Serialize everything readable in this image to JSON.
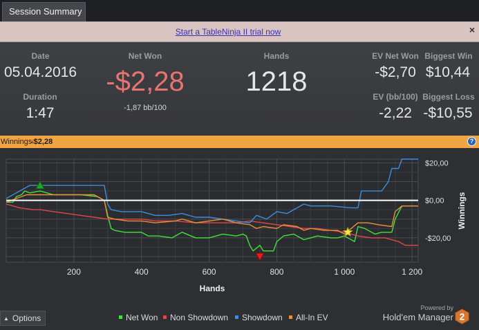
{
  "tab": {
    "label": "Session Summary"
  },
  "banner": {
    "link": "Start a TableNinja II trial now",
    "close": "×"
  },
  "stats": {
    "date_label": "Date",
    "date": "05.04.2016",
    "duration_label": "Duration",
    "duration": "1:47",
    "net_won_label": "Net Won",
    "net_won": "-$2,28",
    "bb100": "-1,87 bb/100",
    "hands_label": "Hands",
    "hands": "1218",
    "ev_net_won_label": "EV Net Won",
    "ev_net_won": "-$2,70",
    "biggest_win_label": "Biggest Win",
    "biggest_win": "$10,44",
    "ev_bb100_label": "EV (bb/100)",
    "ev_bb100": "-2,22",
    "biggest_loss_label": "Biggest Loss",
    "biggest_loss": "-$10,55"
  },
  "winnings_header": {
    "label": "Winnings:",
    "value": "-$2,28",
    "help": "?"
  },
  "options": {
    "label": "Options"
  },
  "brand": {
    "powered_by": "Powered by",
    "name": "Hold'em Manager",
    "logo_number": "2"
  },
  "colors": {
    "net_won": "#3fe33a",
    "non_showdown": "#e0474a",
    "showdown": "#3b8fe3",
    "all_in_ev": "#e9903b",
    "net_won_text": "#e87471",
    "header_bar": "#f0a542"
  },
  "chart_data": {
    "type": "line",
    "xlabel": "Hands",
    "ylabel": "Winnings",
    "xlim": [
      0,
      1218
    ],
    "ylim": [
      -33,
      22
    ],
    "x_ticks": [
      200,
      400,
      600,
      800,
      1000,
      1200
    ],
    "x_tick_labels": [
      "200",
      "400",
      "600",
      "800",
      "1 000",
      "1 200"
    ],
    "y_ticks": [
      20,
      0,
      -20
    ],
    "y_tick_labels": [
      "$20,00",
      "$0,00",
      "-$20,00"
    ],
    "grid": true,
    "legend_position": "bottom",
    "series": [
      {
        "name": "Net Won",
        "color": "#3fe33a",
        "points": [
          [
            0,
            -1
          ],
          [
            20,
            -1
          ],
          [
            30,
            2
          ],
          [
            45,
            3
          ],
          [
            55,
            5
          ],
          [
            70,
            4
          ],
          [
            100,
            5
          ],
          [
            140,
            3
          ],
          [
            180,
            3
          ],
          [
            220,
            3
          ],
          [
            270,
            2
          ],
          [
            290,
            0
          ],
          [
            300,
            -8
          ],
          [
            310,
            -15
          ],
          [
            320,
            -16
          ],
          [
            350,
            -17
          ],
          [
            400,
            -17
          ],
          [
            420,
            -19
          ],
          [
            450,
            -19
          ],
          [
            490,
            -20
          ],
          [
            520,
            -17
          ],
          [
            560,
            -20
          ],
          [
            600,
            -20
          ],
          [
            640,
            -18
          ],
          [
            680,
            -19
          ],
          [
            700,
            -18
          ],
          [
            710,
            -19
          ],
          [
            720,
            -24
          ],
          [
            730,
            -27
          ],
          [
            750,
            -24
          ],
          [
            760,
            -27
          ],
          [
            790,
            -27
          ],
          [
            800,
            -22
          ],
          [
            820,
            -19
          ],
          [
            850,
            -18
          ],
          [
            880,
            -21
          ],
          [
            900,
            -20
          ],
          [
            920,
            -19
          ],
          [
            960,
            -20
          ],
          [
            980,
            -20
          ],
          [
            1000,
            -19
          ],
          [
            1030,
            -22
          ],
          [
            1040,
            -14
          ],
          [
            1060,
            -15
          ],
          [
            1090,
            -18
          ],
          [
            1110,
            -17
          ],
          [
            1140,
            -17
          ],
          [
            1150,
            -10
          ],
          [
            1170,
            -3
          ],
          [
            1200,
            -3
          ],
          [
            1218,
            -3
          ]
        ]
      },
      {
        "name": "Non Showdown",
        "color": "#e0474a",
        "points": [
          [
            0,
            -2
          ],
          [
            40,
            -4
          ],
          [
            80,
            -5
          ],
          [
            100,
            -5
          ],
          [
            140,
            -6
          ],
          [
            180,
            -7
          ],
          [
            220,
            -8
          ],
          [
            260,
            -9
          ],
          [
            300,
            -10
          ],
          [
            340,
            -10
          ],
          [
            400,
            -10
          ],
          [
            440,
            -11
          ],
          [
            500,
            -11
          ],
          [
            560,
            -12
          ],
          [
            620,
            -12
          ],
          [
            680,
            -12
          ],
          [
            720,
            -11
          ],
          [
            760,
            -12
          ],
          [
            800,
            -13
          ],
          [
            840,
            -14
          ],
          [
            880,
            -15
          ],
          [
            920,
            -15
          ],
          [
            960,
            -16
          ],
          [
            1000,
            -17
          ],
          [
            1040,
            -19
          ],
          [
            1080,
            -20
          ],
          [
            1120,
            -20
          ],
          [
            1160,
            -22
          ],
          [
            1180,
            -24
          ],
          [
            1218,
            -24
          ]
        ]
      },
      {
        "name": "Showdown",
        "color": "#3b8fe3",
        "points": [
          [
            0,
            1
          ],
          [
            30,
            4
          ],
          [
            60,
            7
          ],
          [
            70,
            8
          ],
          [
            100,
            8
          ],
          [
            140,
            8
          ],
          [
            180,
            8
          ],
          [
            220,
            8
          ],
          [
            260,
            8
          ],
          [
            290,
            8
          ],
          [
            300,
            -2
          ],
          [
            310,
            -5
          ],
          [
            340,
            -6
          ],
          [
            400,
            -6
          ],
          [
            440,
            -8
          ],
          [
            480,
            -8
          ],
          [
            520,
            -7
          ],
          [
            560,
            -9
          ],
          [
            600,
            -9
          ],
          [
            640,
            -10
          ],
          [
            680,
            -11
          ],
          [
            720,
            -12
          ],
          [
            740,
            -8
          ],
          [
            770,
            -10
          ],
          [
            800,
            -6
          ],
          [
            830,
            -7
          ],
          [
            880,
            -2
          ],
          [
            900,
            -3
          ],
          [
            960,
            -3
          ],
          [
            1020,
            -4
          ],
          [
            1040,
            -4
          ],
          [
            1050,
            5
          ],
          [
            1070,
            5
          ],
          [
            1110,
            5
          ],
          [
            1130,
            10
          ],
          [
            1140,
            17
          ],
          [
            1160,
            17
          ],
          [
            1170,
            22
          ],
          [
            1218,
            22
          ]
        ]
      },
      {
        "name": "All-In EV",
        "color": "#e9903b",
        "points": [
          [
            0,
            -1
          ],
          [
            30,
            1
          ],
          [
            60,
            3
          ],
          [
            100,
            3
          ],
          [
            140,
            3
          ],
          [
            200,
            3
          ],
          [
            260,
            3
          ],
          [
            290,
            0
          ],
          [
            300,
            -9
          ],
          [
            320,
            -10
          ],
          [
            360,
            -11
          ],
          [
            400,
            -11
          ],
          [
            440,
            -12
          ],
          [
            500,
            -11
          ],
          [
            520,
            -10
          ],
          [
            560,
            -12
          ],
          [
            600,
            -11
          ],
          [
            640,
            -10
          ],
          [
            680,
            -12
          ],
          [
            720,
            -13
          ],
          [
            740,
            -15
          ],
          [
            760,
            -14
          ],
          [
            800,
            -15
          ],
          [
            820,
            -13
          ],
          [
            860,
            -14
          ],
          [
            880,
            -16
          ],
          [
            900,
            -15
          ],
          [
            940,
            -16
          ],
          [
            980,
            -16
          ],
          [
            1000,
            -18
          ],
          [
            1040,
            -12
          ],
          [
            1070,
            -12
          ],
          [
            1100,
            -13
          ],
          [
            1140,
            -14
          ],
          [
            1150,
            -6
          ],
          [
            1170,
            -3
          ],
          [
            1218,
            -3
          ]
        ]
      }
    ],
    "markers": [
      {
        "label": "max",
        "x": 100,
        "y": 8,
        "shape": "triangle-up",
        "color": "#1fa52a"
      },
      {
        "label": "min",
        "x": 750,
        "y": -30,
        "shape": "triangle-down",
        "color": "#e21f1f"
      },
      {
        "label": "all-in",
        "x": 1010,
        "y": -17,
        "shape": "star",
        "color": "#f5e64b"
      }
    ]
  }
}
